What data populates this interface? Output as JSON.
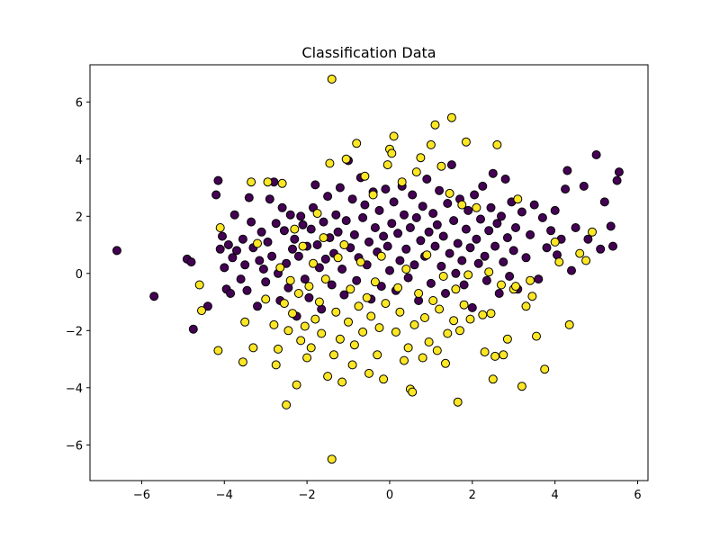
{
  "chart_data": {
    "type": "scatter",
    "title": "Classification Data",
    "xlabel": "",
    "ylabel": "",
    "xlim": [
      -7.25,
      6.25
    ],
    "ylim": [
      -7.25,
      7.3
    ],
    "x_ticks": [
      -6,
      -4,
      -2,
      0,
      2,
      4,
      6
    ],
    "y_ticks": [
      -6,
      -4,
      -2,
      0,
      2,
      4,
      6
    ],
    "x_tick_labels": [
      "−6",
      "−4",
      "−2",
      "0",
      "2",
      "4",
      "6"
    ],
    "y_tick_labels": [
      "−6",
      "−4",
      "−2",
      "0",
      "2",
      "4",
      "6"
    ],
    "grid": false,
    "legend": "none",
    "marker_edge_color": "#000000",
    "series": [
      {
        "class": 0,
        "color": "#440154",
        "points": [
          [
            -6.6,
            0.8
          ],
          [
            -5.7,
            -0.8
          ],
          [
            -4.9,
            0.5
          ],
          [
            -4.8,
            0.4
          ],
          [
            -4.75,
            -1.95
          ],
          [
            -4.4,
            -1.15
          ],
          [
            -4.2,
            2.75
          ],
          [
            -4.15,
            3.25
          ],
          [
            -4.1,
            0.85
          ],
          [
            -4.05,
            1.3
          ],
          [
            -4.0,
            0.2
          ],
          [
            -3.95,
            -0.55
          ],
          [
            -3.9,
            1.0
          ],
          [
            -3.85,
            -0.7
          ],
          [
            -3.8,
            0.55
          ],
          [
            -3.75,
            2.05
          ],
          [
            -3.7,
            0.8
          ],
          [
            -3.6,
            -0.2
          ],
          [
            -3.55,
            1.2
          ],
          [
            -3.5,
            0.3
          ],
          [
            -3.45,
            -0.6
          ],
          [
            -3.4,
            2.65
          ],
          [
            -3.35,
            1.8
          ],
          [
            -3.3,
            0.9
          ],
          [
            -3.2,
            -1.15
          ],
          [
            -3.15,
            0.45
          ],
          [
            -3.1,
            1.45
          ],
          [
            -3.05,
            0.15
          ],
          [
            -3.0,
            -0.3
          ],
          [
            -2.95,
            1.1
          ],
          [
            -2.9,
            2.6
          ],
          [
            -2.85,
            0.6
          ],
          [
            -2.8,
            3.2
          ],
          [
            -2.75,
            1.75
          ],
          [
            -2.7,
            0.0
          ],
          [
            -2.65,
            -0.95
          ],
          [
            -2.6,
            2.3
          ],
          [
            -2.55,
            1.5
          ],
          [
            -2.5,
            0.35
          ],
          [
            -2.45,
            -0.5
          ],
          [
            -2.4,
            2.05
          ],
          [
            -2.35,
            0.85
          ],
          [
            -2.3,
            1.2
          ],
          [
            -2.25,
            -1.5
          ],
          [
            -2.2,
            0.6
          ],
          [
            -2.15,
            2.0
          ],
          [
            -2.1,
            1.7
          ],
          [
            -2.05,
            -0.2
          ],
          [
            -2.0,
            0.95
          ],
          [
            -1.95,
            -0.85
          ],
          [
            -1.9,
            1.55
          ],
          [
            -1.85,
            2.3
          ],
          [
            -1.8,
            3.1
          ],
          [
            -1.75,
            1.0
          ],
          [
            -1.7,
            0.2
          ],
          [
            -1.65,
            -1.25
          ],
          [
            -1.6,
            1.8
          ],
          [
            -1.55,
            0.5
          ],
          [
            -1.5,
            2.7
          ],
          [
            -1.45,
            1.25
          ],
          [
            -1.4,
            -0.4
          ],
          [
            -1.35,
            0.7
          ],
          [
            -1.3,
            2.05
          ],
          [
            -1.25,
            1.45
          ],
          [
            -1.2,
            3.0
          ],
          [
            -1.15,
            0.15
          ],
          [
            -1.1,
            -0.75
          ],
          [
            -1.05,
            1.85
          ],
          [
            -1.0,
            3.95
          ],
          [
            -0.95,
            0.9
          ],
          [
            -0.9,
            2.6
          ],
          [
            -0.85,
            1.35
          ],
          [
            -0.8,
            -0.25
          ],
          [
            -0.75,
            0.55
          ],
          [
            -0.7,
            3.35
          ],
          [
            -0.65,
            1.95
          ],
          [
            -0.6,
            2.4
          ],
          [
            -0.55,
            0.3
          ],
          [
            -0.5,
            1.1
          ],
          [
            -0.45,
            -0.9
          ],
          [
            -0.4,
            2.85
          ],
          [
            -0.35,
            1.6
          ],
          [
            -0.3,
            0.75
          ],
          [
            -0.25,
            2.2
          ],
          [
            -0.2,
            -0.45
          ],
          [
            -0.15,
            1.3
          ],
          [
            -0.1,
            2.95
          ],
          [
            -0.05,
            0.95
          ],
          [
            0.0,
            0.1
          ],
          [
            0.05,
            1.75
          ],
          [
            0.1,
            2.5
          ],
          [
            0.15,
            -0.6
          ],
          [
            0.2,
            1.4
          ],
          [
            0.25,
            0.45
          ],
          [
            0.3,
            3.05
          ],
          [
            0.35,
            2.05
          ],
          [
            0.4,
            0.85
          ],
          [
            0.45,
            -0.15
          ],
          [
            0.5,
            1.6
          ],
          [
            0.55,
            2.75
          ],
          [
            0.6,
            0.3
          ],
          [
            0.65,
            1.95
          ],
          [
            0.7,
            -0.95
          ],
          [
            0.75,
            1.15
          ],
          [
            0.8,
            2.35
          ],
          [
            0.85,
            0.6
          ],
          [
            0.9,
            3.3
          ],
          [
            0.95,
            1.45
          ],
          [
            1.0,
            -0.35
          ],
          [
            1.05,
            2.1
          ],
          [
            1.1,
            0.95
          ],
          [
            1.15,
            1.7
          ],
          [
            1.2,
            2.9
          ],
          [
            1.25,
            0.25
          ],
          [
            1.3,
            1.3
          ],
          [
            1.35,
            -0.7
          ],
          [
            1.4,
            2.45
          ],
          [
            1.45,
            0.7
          ],
          [
            1.5,
            3.8
          ],
          [
            1.55,
            1.85
          ],
          [
            1.6,
            0.0
          ],
          [
            1.65,
            1.05
          ],
          [
            1.7,
            2.6
          ],
          [
            1.75,
            0.45
          ],
          [
            1.8,
            -0.4
          ],
          [
            1.85,
            1.55
          ],
          [
            1.9,
            2.2
          ],
          [
            1.95,
            0.9
          ],
          [
            2.0,
            -1.2
          ],
          [
            2.05,
            2.75
          ],
          [
            2.1,
            1.2
          ],
          [
            2.15,
            0.35
          ],
          [
            2.2,
            1.9
          ],
          [
            2.25,
            3.05
          ],
          [
            2.3,
            0.6
          ],
          [
            2.35,
            -0.25
          ],
          [
            2.4,
            1.5
          ],
          [
            2.45,
            2.3
          ],
          [
            2.5,
            3.5
          ],
          [
            2.55,
            0.95
          ],
          [
            2.6,
            1.75
          ],
          [
            2.65,
            -0.7
          ],
          [
            2.7,
            2.0
          ],
          [
            2.75,
            0.4
          ],
          [
            2.8,
            3.3
          ],
          [
            2.85,
            1.25
          ],
          [
            2.9,
            -0.1
          ],
          [
            2.95,
            2.5
          ],
          [
            3.0,
            0.8
          ],
          [
            3.05,
            1.6
          ],
          [
            3.1,
            -0.55
          ],
          [
            3.2,
            2.15
          ],
          [
            3.3,
            0.55
          ],
          [
            3.4,
            1.35
          ],
          [
            3.5,
            2.4
          ],
          [
            3.6,
            -0.2
          ],
          [
            3.7,
            1.95
          ],
          [
            3.8,
            0.9
          ],
          [
            3.9,
            1.5
          ],
          [
            4.0,
            2.2
          ],
          [
            4.05,
            0.65
          ],
          [
            4.15,
            1.2
          ],
          [
            4.25,
            2.95
          ],
          [
            4.3,
            3.6
          ],
          [
            4.4,
            0.1
          ],
          [
            4.5,
            1.6
          ],
          [
            4.7,
            3.05
          ],
          [
            4.8,
            1.2
          ],
          [
            5.0,
            4.15
          ],
          [
            5.1,
            0.85
          ],
          [
            5.2,
            2.5
          ],
          [
            5.35,
            1.65
          ],
          [
            5.4,
            0.95
          ],
          [
            5.5,
            3.25
          ],
          [
            5.55,
            3.55
          ]
        ]
      },
      {
        "class": 1,
        "color": "#fde725",
        "points": [
          [
            -4.6,
            -0.4
          ],
          [
            -4.55,
            -1.3
          ],
          [
            -4.15,
            -2.7
          ],
          [
            -4.1,
            1.6
          ],
          [
            -3.55,
            -3.1
          ],
          [
            -3.5,
            -1.7
          ],
          [
            -3.35,
            3.2
          ],
          [
            -3.3,
            -2.6
          ],
          [
            -3.2,
            1.05
          ],
          [
            -3.0,
            -0.9
          ],
          [
            -2.95,
            3.2
          ],
          [
            -2.8,
            -1.8
          ],
          [
            -2.75,
            -3.2
          ],
          [
            -2.7,
            -2.65
          ],
          [
            -2.65,
            0.2
          ],
          [
            -2.6,
            3.15
          ],
          [
            -2.55,
            -1.05
          ],
          [
            -2.5,
            -4.6
          ],
          [
            -2.45,
            -2.0
          ],
          [
            -2.4,
            -0.25
          ],
          [
            -2.35,
            -1.4
          ],
          [
            -2.3,
            1.55
          ],
          [
            -2.25,
            -3.9
          ],
          [
            -2.2,
            -0.7
          ],
          [
            -2.15,
            -2.35
          ],
          [
            -2.1,
            0.95
          ],
          [
            -2.05,
            -1.85
          ],
          [
            -2.0,
            -2.95
          ],
          [
            -1.95,
            -0.45
          ],
          [
            -1.9,
            -2.6
          ],
          [
            -1.85,
            0.35
          ],
          [
            -1.8,
            -1.6
          ],
          [
            -1.75,
            2.1
          ],
          [
            -1.7,
            -1.0
          ],
          [
            -1.65,
            -2.1
          ],
          [
            -1.6,
            1.25
          ],
          [
            -1.55,
            -0.2
          ],
          [
            -1.5,
            -3.6
          ],
          [
            -1.45,
            3.85
          ],
          [
            -1.4,
            6.8
          ],
          [
            -1.4,
            -6.5
          ],
          [
            -1.35,
            -2.85
          ],
          [
            -1.3,
            -1.35
          ],
          [
            -1.25,
            0.55
          ],
          [
            -1.2,
            -2.3
          ],
          [
            -1.15,
            -3.8
          ],
          [
            -1.1,
            1.0
          ],
          [
            -1.05,
            4.0
          ],
          [
            -1.0,
            -1.7
          ],
          [
            -0.95,
            -0.55
          ],
          [
            -0.9,
            -3.2
          ],
          [
            -0.85,
            -2.5
          ],
          [
            -0.8,
            4.55
          ],
          [
            -0.75,
            -1.15
          ],
          [
            -0.7,
            0.4
          ],
          [
            -0.65,
            -2.05
          ],
          [
            -0.6,
            3.4
          ],
          [
            -0.55,
            -0.85
          ],
          [
            -0.5,
            -3.5
          ],
          [
            -0.45,
            -1.5
          ],
          [
            -0.4,
            2.75
          ],
          [
            -0.35,
            -0.3
          ],
          [
            -0.3,
            -2.85
          ],
          [
            -0.25,
            -1.9
          ],
          [
            -0.2,
            0.6
          ],
          [
            -0.15,
            -3.7
          ],
          [
            -0.1,
            -1.05
          ],
          [
            -0.05,
            3.8
          ],
          [
            0.0,
            4.35
          ],
          [
            0.05,
            4.2
          ],
          [
            0.1,
            4.8
          ],
          [
            0.15,
            -2.05
          ],
          [
            0.2,
            -0.5
          ],
          [
            0.25,
            -1.35
          ],
          [
            0.3,
            3.2
          ],
          [
            0.35,
            -3.05
          ],
          [
            0.4,
            0.15
          ],
          [
            0.45,
            -2.6
          ],
          [
            0.5,
            -4.05
          ],
          [
            0.55,
            -4.15
          ],
          [
            0.6,
            -1.8
          ],
          [
            0.65,
            3.55
          ],
          [
            0.7,
            -0.7
          ],
          [
            0.75,
            4.05
          ],
          [
            0.8,
            -2.95
          ],
          [
            0.85,
            -1.55
          ],
          [
            0.9,
            0.65
          ],
          [
            0.95,
            -2.4
          ],
          [
            1.0,
            4.5
          ],
          [
            1.05,
            -0.95
          ],
          [
            1.1,
            5.2
          ],
          [
            1.15,
            -2.7
          ],
          [
            1.2,
            -1.25
          ],
          [
            1.25,
            3.75
          ],
          [
            1.3,
            -0.1
          ],
          [
            1.35,
            -3.15
          ],
          [
            1.4,
            -2.1
          ],
          [
            1.45,
            2.8
          ],
          [
            1.5,
            5.45
          ],
          [
            1.55,
            -1.65
          ],
          [
            1.6,
            -0.55
          ],
          [
            1.65,
            -4.5
          ],
          [
            1.7,
            -2.0
          ],
          [
            1.75,
            2.4
          ],
          [
            1.8,
            -1.1
          ],
          [
            1.85,
            4.6
          ],
          [
            1.9,
            -0.05
          ],
          [
            1.95,
            -1.6
          ],
          [
            2.1,
            2.3
          ],
          [
            2.25,
            -1.45
          ],
          [
            2.3,
            -2.75
          ],
          [
            2.4,
            0.05
          ],
          [
            2.45,
            -1.4
          ],
          [
            2.5,
            -3.7
          ],
          [
            2.55,
            -2.9
          ],
          [
            2.6,
            4.5
          ],
          [
            2.7,
            -0.4
          ],
          [
            2.75,
            -2.85
          ],
          [
            2.85,
            -2.3
          ],
          [
            3.0,
            -0.55
          ],
          [
            3.05,
            -0.45
          ],
          [
            3.1,
            2.6
          ],
          [
            3.2,
            -3.95
          ],
          [
            3.3,
            -1.15
          ],
          [
            3.4,
            -0.25
          ],
          [
            3.45,
            -0.8
          ],
          [
            3.55,
            -2.2
          ],
          [
            3.75,
            -3.35
          ],
          [
            4.0,
            1.1
          ],
          [
            4.1,
            0.4
          ],
          [
            4.35,
            -1.8
          ],
          [
            4.6,
            0.7
          ],
          [
            4.75,
            0.45
          ],
          [
            4.9,
            1.45
          ]
        ]
      }
    ]
  }
}
